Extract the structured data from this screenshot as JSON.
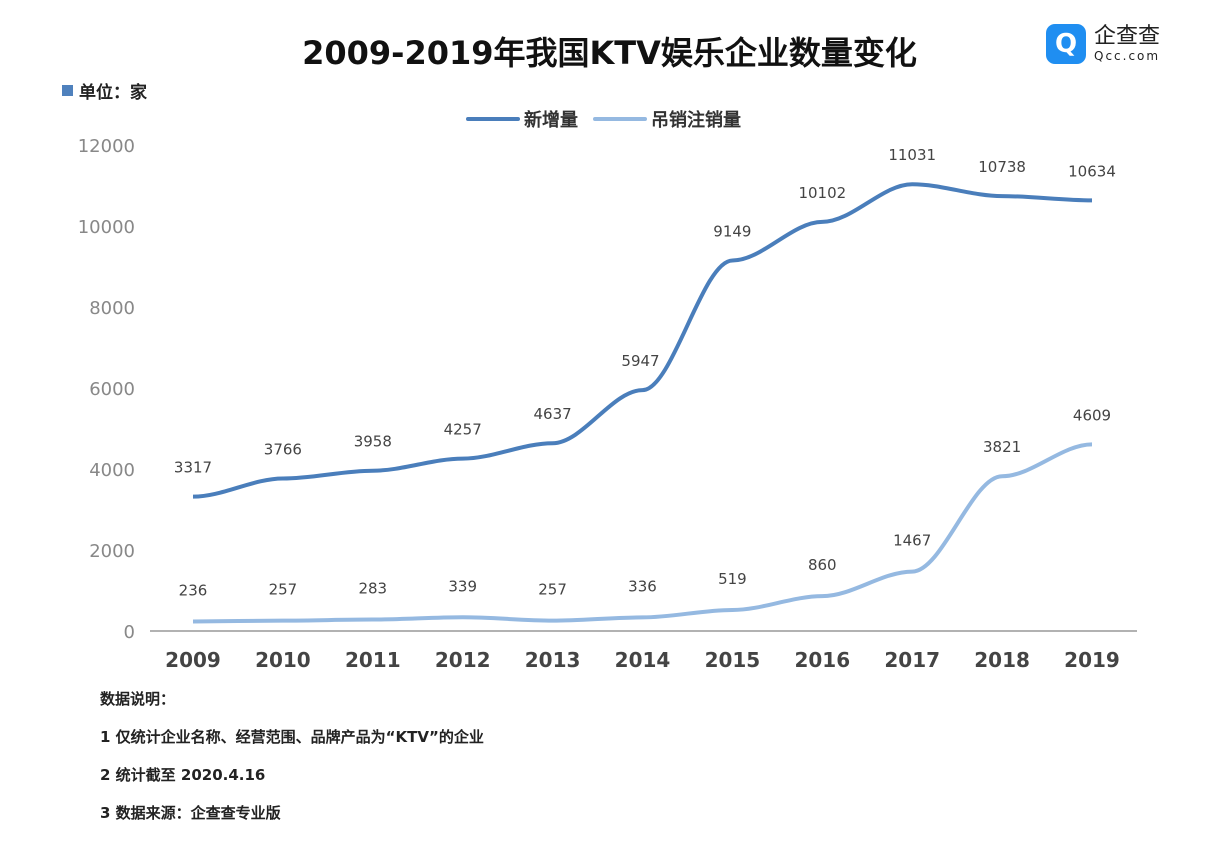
{
  "title": "2009-2019年我国KTV娱乐企业数量变化",
  "unit": "单位：家",
  "logo": {
    "name": "企查查",
    "domain": "Qcc.com"
  },
  "notes": {
    "heading": "数据说明：",
    "items": [
      "1 仅统计企业名称、经营范围、品牌产品为“KTV”的企业",
      "2 统计截至 2020.4.16",
      "3 数据来源：企查查专业版"
    ]
  },
  "chart_data": {
    "type": "line",
    "title": "2009-2019年我国KTV娱乐企业数量变化",
    "categories": [
      "2009",
      "2010",
      "2011",
      "2012",
      "2013",
      "2014",
      "2015",
      "2016",
      "2017",
      "2018",
      "2019"
    ],
    "ylim": [
      0,
      12000
    ],
    "yticks": [
      "0",
      "2000",
      "4000",
      "6000",
      "8000",
      "10000",
      "12000"
    ],
    "grid": false,
    "legend": "top-center",
    "series": [
      {
        "name": "新增量",
        "color": "#4a7ebb",
        "values": [
          3317,
          3766,
          3958,
          4257,
          4637,
          5947,
          9149,
          10102,
          11031,
          10738,
          10634
        ]
      },
      {
        "name": "吊销注销量",
        "color": "#95b9e1",
        "values": [
          236,
          257,
          283,
          339,
          257,
          336,
          519,
          860,
          1467,
          3821,
          4609
        ]
      }
    ]
  }
}
